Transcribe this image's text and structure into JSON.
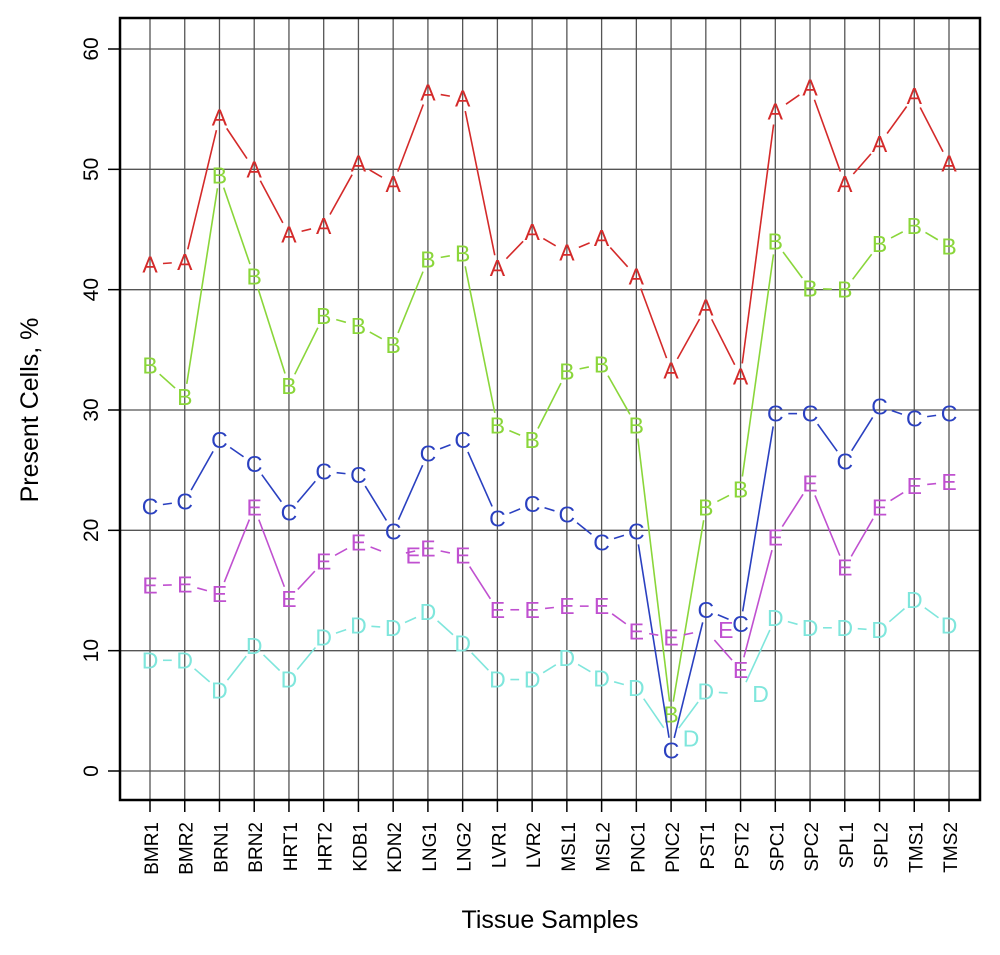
{
  "chart_data": {
    "type": "line",
    "title": "",
    "xlabel": "Tissue Samples",
    "ylabel": "Present Cells, %",
    "ylim": [
      0,
      60
    ],
    "yticks": [
      0,
      10,
      20,
      30,
      40,
      50,
      60
    ],
    "grid": true,
    "categories": [
      "BMR1",
      "BMR2",
      "BRN1",
      "BRN2",
      "HRT1",
      "HRT2",
      "KDB1",
      "KDN2",
      "LNG1",
      "LNG2",
      "LVR1",
      "LVR2",
      "MSL1",
      "MSL2",
      "PNC1",
      "PNC2",
      "PST1",
      "PST2",
      "SPC1",
      "SPC2",
      "SPL1",
      "SPL2",
      "TMS1",
      "TMS2"
    ],
    "series": [
      {
        "name": "A",
        "color": "#d42a2a",
        "values": [
          42.1,
          42.3,
          54.3,
          50.0,
          44.6,
          45.3,
          50.5,
          48.8,
          56.4,
          55.9,
          41.8,
          44.8,
          43.1,
          44.3,
          41.1,
          33.3,
          38.5,
          32.8,
          54.8,
          56.8,
          48.8,
          52.1,
          56.1,
          50.5
        ]
      },
      {
        "name": "B",
        "color": "#8ad63a",
        "values": [
          33.7,
          31.1,
          49.5,
          41.1,
          32.0,
          37.8,
          37.0,
          35.4,
          42.5,
          43.0,
          28.7,
          27.5,
          33.2,
          33.8,
          28.7,
          4.7,
          21.9,
          23.4,
          44.0,
          40.1,
          40.0,
          43.8,
          45.3,
          43.6
        ]
      },
      {
        "name": "C",
        "color": "#2a40c0",
        "values": [
          22.0,
          22.4,
          27.5,
          25.5,
          21.5,
          24.9,
          24.6,
          19.9,
          26.4,
          27.5,
          21.0,
          22.2,
          21.3,
          19.0,
          19.9,
          1.7,
          13.4,
          12.2,
          29.7,
          29.7,
          25.7,
          30.3,
          29.3,
          29.7
        ]
      },
      {
        "name": "D",
        "color": "#7fe6dc",
        "values": [
          9.2,
          9.2,
          6.7,
          10.4,
          7.6,
          11.1,
          12.1,
          11.9,
          13.2,
          10.6,
          7.6,
          7.6,
          9.4,
          7.7,
          6.9,
          2.7,
          6.6,
          6.4,
          12.7,
          11.9,
          11.9,
          11.7,
          14.2,
          12.1
        ]
      },
      {
        "name": "E",
        "color": "#c050d0",
        "values": [
          15.4,
          15.5,
          14.7,
          21.9,
          14.3,
          17.4,
          19.0,
          17.9,
          18.5,
          17.9,
          13.4,
          13.4,
          13.7,
          13.7,
          11.6,
          11.1,
          11.7,
          8.4,
          19.4,
          23.9,
          16.9,
          21.9,
          23.7,
          24.0
        ]
      }
    ]
  }
}
